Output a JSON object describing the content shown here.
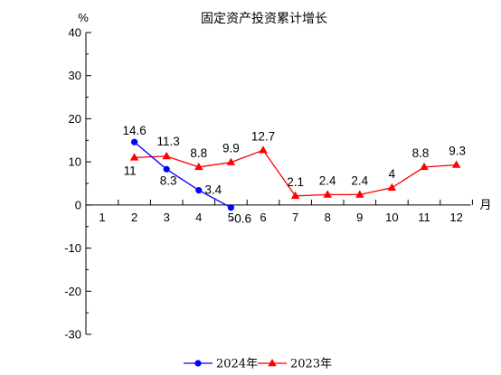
{
  "chart_data": {
    "type": "line",
    "title": "固定资产投资累计增长",
    "ylabel": "%",
    "xlabel": "月",
    "categories": [
      "1",
      "2",
      "3",
      "4",
      "5",
      "6",
      "7",
      "8",
      "9",
      "10",
      "11",
      "12"
    ],
    "ylim": [
      -30,
      40
    ],
    "yticks": [
      -30,
      -20,
      -10,
      0,
      10,
      20,
      30,
      40
    ],
    "series": [
      {
        "name": "2024年",
        "color": "#0000ff",
        "marker": "circle",
        "x": [
          2,
          3,
          4,
          5
        ],
        "values": [
          14.6,
          8.3,
          3.4,
          -0.6
        ],
        "labels": [
          "14.6",
          "8.3",
          "3.4",
          "-0.6"
        ]
      },
      {
        "name": "2023年",
        "color": "#ff0000",
        "marker": "triangle",
        "x": [
          2,
          3,
          4,
          5,
          6,
          7,
          8,
          9,
          10,
          11,
          12
        ],
        "values": [
          11,
          11.3,
          8.8,
          9.9,
          12.7,
          2.1,
          2.4,
          2.4,
          4,
          8.8,
          9.3
        ],
        "labels": [
          "11",
          "11.3",
          "8.8",
          "9.9",
          "12.7",
          "2.1",
          "2.4",
          "2.4",
          "4",
          "8.8",
          "9.3"
        ]
      }
    ],
    "legend_position": "bottom-center",
    "grid": false
  }
}
